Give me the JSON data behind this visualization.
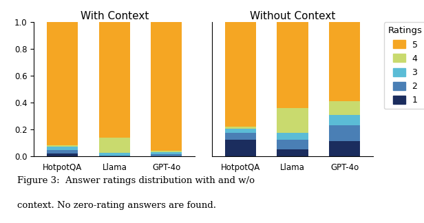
{
  "groups": [
    "With Context",
    "Without Context"
  ],
  "categories": [
    "HotpotQA",
    "Llama",
    "GPT-4o"
  ],
  "ratings": [
    1,
    2,
    3,
    4,
    5
  ],
  "colors": [
    "#1b2d5e",
    "#4a7fb5",
    "#5bbcd6",
    "#c9da6e",
    "#f5a623"
  ],
  "with_context": {
    "HotpotQA": [
      0.02,
      0.025,
      0.025,
      0.01,
      0.92
    ],
    "Llama": [
      0.0,
      0.005,
      0.02,
      0.115,
      0.86
    ],
    "GPT-4o": [
      0.0,
      0.015,
      0.015,
      0.01,
      0.96
    ]
  },
  "without_context": {
    "HotpotQA": [
      0.12,
      0.055,
      0.03,
      0.015,
      0.78
    ],
    "Llama": [
      0.05,
      0.075,
      0.05,
      0.185,
      0.64
    ],
    "GPT-4o": [
      0.11,
      0.12,
      0.08,
      0.1,
      0.59
    ]
  },
  "legend_title": "Ratings",
  "title_fontsize": 11,
  "tick_fontsize": 8.5,
  "legend_fontsize": 9,
  "bar_width": 0.6,
  "figsize": [
    6.16,
    3.24
  ],
  "dpi": 100,
  "caption_line1": "Figure 3:  Answer ratings distribution with and w/o",
  "caption_line2": "context. No zero-rating answers are found."
}
